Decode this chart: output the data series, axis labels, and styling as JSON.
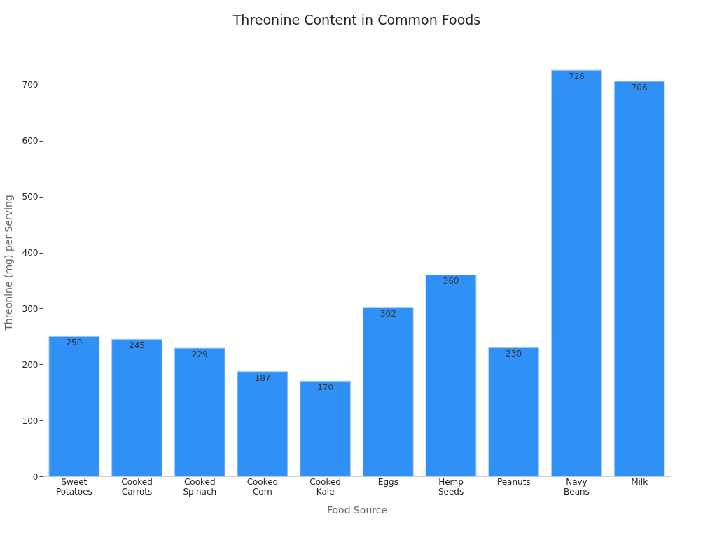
{
  "chart_data": {
    "type": "bar",
    "title": "Threonine Content in Common Foods",
    "xlabel": "Food Source",
    "ylabel": "Threonine (mg) per Serving",
    "categories": [
      "Sweet Potatoes",
      "Cooked Carrots",
      "Cooked Spinach",
      "Cooked Corn",
      "Cooked Kale",
      "Eggs",
      "Hemp Seeds",
      "Peanuts",
      "Navy Beans",
      "Milk"
    ],
    "values": [
      250,
      245,
      229,
      187,
      170,
      302,
      360,
      230,
      726,
      706
    ],
    "color": "#2f91f5",
    "ylim": [
      0,
      765
    ],
    "yticks": [
      0,
      100,
      200,
      300,
      400,
      500,
      600,
      700
    ],
    "grid": false,
    "data_labels": true
  }
}
